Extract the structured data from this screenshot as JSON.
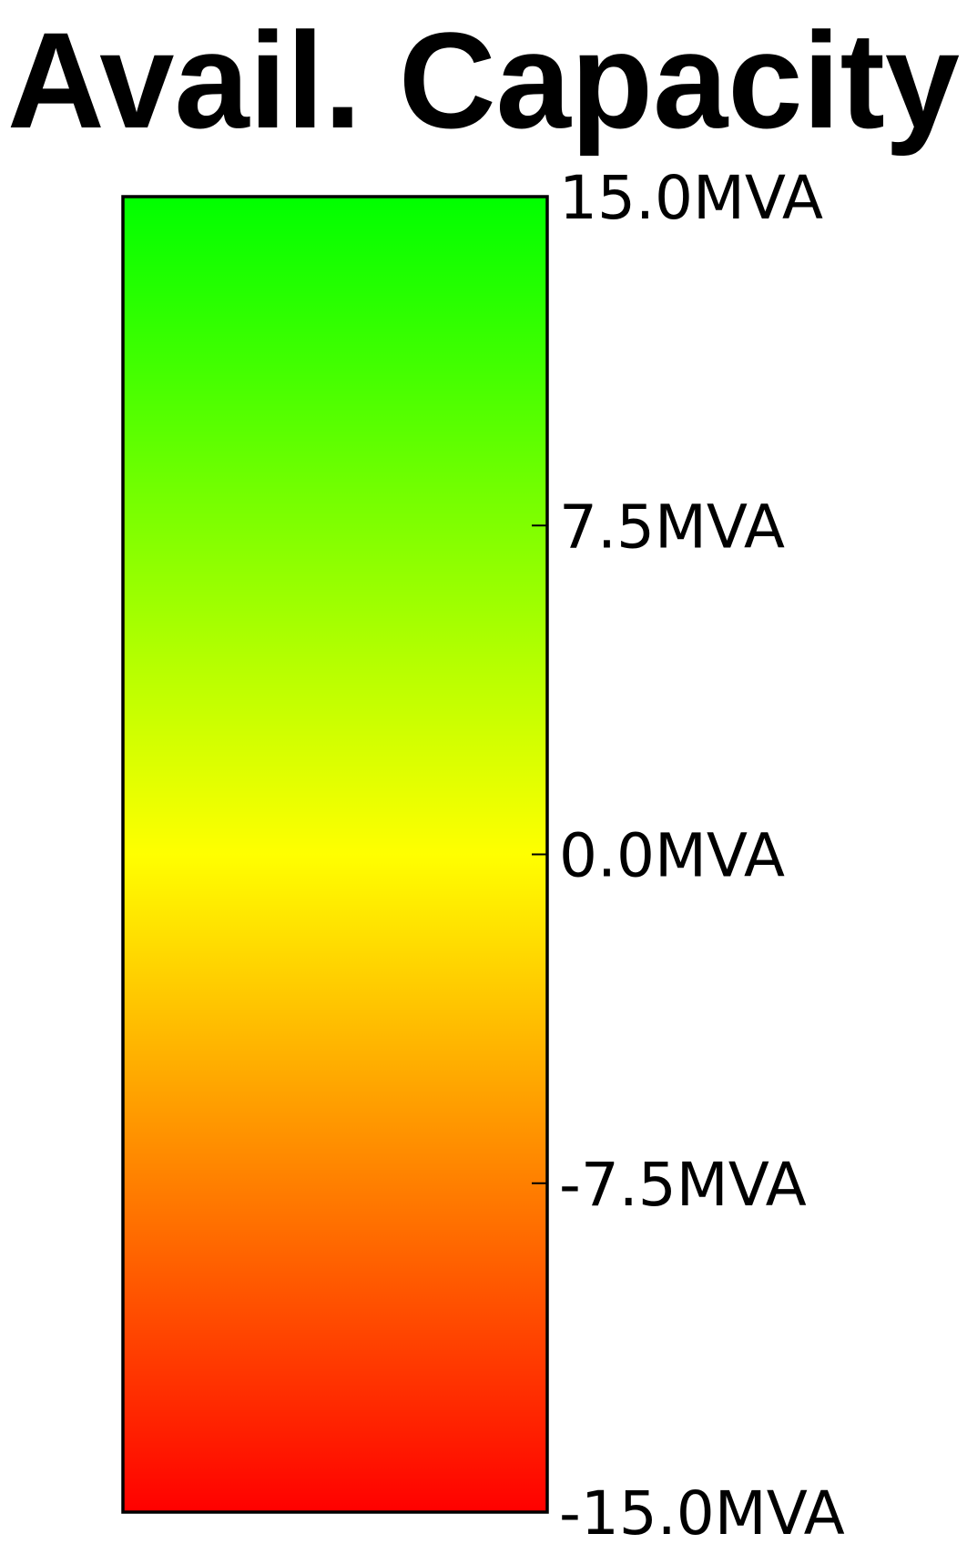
{
  "chart_data": {
    "type": "heatmap",
    "title": "Avail. Capacity",
    "unit": "MVA",
    "range": [
      -15.0,
      15.0
    ],
    "ticks": [
      {
        "value": 15.0,
        "label": "15.0MVA"
      },
      {
        "value": 7.5,
        "label": "7.5MVA"
      },
      {
        "value": 0.0,
        "label": "0.0MVA"
      },
      {
        "value": -7.5,
        "label": "-7.5MVA"
      },
      {
        "value": -15.0,
        "label": "-15.0MVA"
      }
    ],
    "color_stops": [
      {
        "value": 15.0,
        "color": "#00ff00"
      },
      {
        "value": 0.0,
        "color": "#ffff00"
      },
      {
        "value": -15.0,
        "color": "#ff0000"
      }
    ]
  }
}
